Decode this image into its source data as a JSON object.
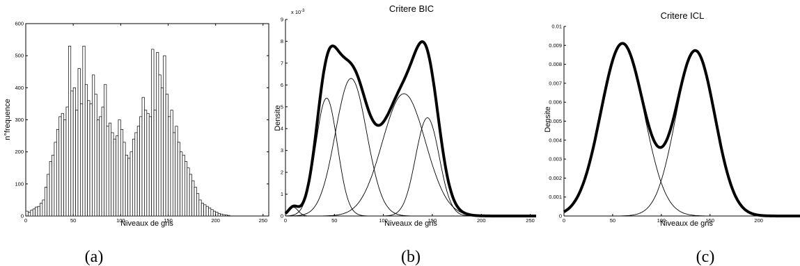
{
  "chart_data": [
    {
      "type": "bar",
      "caption": "(a)",
      "title": "",
      "xlabel": "Niveaux de gris",
      "ylabel": "n°frequence",
      "xlim": [
        0,
        256
      ],
      "ylim": [
        0,
        600
      ],
      "xticks": [
        0,
        50,
        100,
        150,
        200,
        250
      ],
      "yticks": [
        0,
        100,
        200,
        300,
        400,
        500,
        600
      ],
      "bin_width": 2.5,
      "bins_x": [
        1.25,
        3.75,
        6.25,
        8.75,
        11.25,
        13.75,
        16.25,
        18.75,
        21.25,
        23.75,
        26.25,
        28.75,
        31.25,
        33.75,
        36.25,
        38.75,
        41.25,
        43.75,
        46.25,
        48.75,
        51.25,
        53.75,
        56.25,
        58.75,
        61.25,
        63.75,
        66.25,
        68.75,
        71.25,
        73.75,
        76.25,
        78.75,
        81.25,
        83.75,
        86.25,
        88.75,
        91.25,
        93.75,
        96.25,
        98.75,
        101.25,
        103.75,
        106.25,
        108.75,
        111.25,
        113.75,
        116.25,
        118.75,
        121.25,
        123.75,
        126.25,
        128.75,
        131.25,
        133.75,
        136.25,
        138.75,
        141.25,
        143.75,
        146.25,
        148.75,
        151.25,
        153.75,
        156.25,
        158.75,
        161.25,
        163.75,
        166.25,
        168.75,
        171.25,
        173.75,
        176.25,
        178.75,
        181.25,
        183.75,
        186.25,
        188.75,
        191.25,
        193.75,
        196.25,
        198.75,
        201.25,
        203.75,
        206.25,
        208.75,
        211.25,
        213.75
      ],
      "values": [
        15,
        12,
        18,
        22,
        28,
        30,
        40,
        50,
        90,
        130,
        170,
        190,
        230,
        270,
        310,
        320,
        300,
        340,
        530,
        390,
        400,
        330,
        460,
        350,
        530,
        410,
        360,
        350,
        440,
        380,
        300,
        310,
        340,
        410,
        280,
        290,
        260,
        240,
        250,
        300,
        270,
        230,
        190,
        180,
        200,
        240,
        260,
        280,
        310,
        370,
        330,
        320,
        310,
        520,
        330,
        510,
        440,
        400,
        500,
        380,
        310,
        330,
        260,
        280,
        230,
        200,
        190,
        170,
        150,
        130,
        110,
        90,
        70,
        50,
        40,
        35,
        30,
        25,
        20,
        15,
        12,
        8,
        6,
        4,
        3,
        2
      ]
    },
    {
      "type": "line",
      "caption": "(b)",
      "title": "Critere BIC",
      "xlabel": "Niveaux de gris",
      "ylabel": "Densite",
      "y_scale_label": "x 10",
      "y_scale_exponent": "-3",
      "xlim": [
        0,
        256
      ],
      "ylim": [
        0,
        9
      ],
      "xticks": [
        0,
        50,
        100,
        150,
        200,
        250
      ],
      "yticks": [
        0,
        1,
        2,
        3,
        4,
        5,
        6,
        7,
        8,
        9
      ],
      "components": [
        {
          "mu": 8,
          "sigma": 5,
          "peak": 0.4
        },
        {
          "mu": 42,
          "sigma": 11,
          "peak": 5.4
        },
        {
          "mu": 67,
          "sigma": 16,
          "peak": 6.3
        },
        {
          "mu": 121,
          "sigma": 22,
          "peak": 5.6
        },
        {
          "mu": 145,
          "sigma": 12,
          "peak": 4.5
        }
      ]
    },
    {
      "type": "line",
      "caption": "(c)",
      "title": "Critere ICL",
      "xlabel": "Niveaux de gris",
      "ylabel": "Densite",
      "xlim": [
        0,
        256
      ],
      "ylim": [
        0,
        0.01
      ],
      "xticks": [
        0,
        50,
        100,
        150,
        200,
        250
      ],
      "yticks": [
        0,
        0.001,
        0.002,
        0.003,
        0.004,
        0.005,
        0.006,
        0.007,
        0.008,
        0.009,
        0.01
      ],
      "components": [
        {
          "mu": 60,
          "sigma": 22,
          "peak": 0.0091
        },
        {
          "mu": 135,
          "sigma": 20,
          "peak": 0.0087
        }
      ]
    }
  ]
}
